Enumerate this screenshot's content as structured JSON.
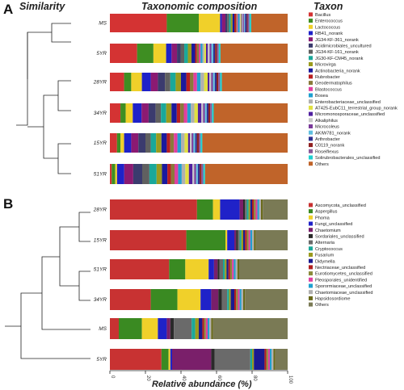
{
  "headers": {
    "similarity": "Similarity",
    "composition": "Taxonomic composition",
    "taxon": "Taxon"
  },
  "x_axis_label": "Relative abundance (%)",
  "x_ticks": [
    "0",
    "20",
    "40",
    "60",
    "80",
    "100"
  ],
  "chart_data": [
    {
      "panel": "A",
      "type": "bar",
      "orientation": "horizontal",
      "stacked": true,
      "xlim": [
        0,
        100
      ],
      "categories": [
        "MS",
        "5YR",
        "28YR",
        "34YR",
        "15YR",
        "51YR"
      ],
      "legend": [
        {
          "name": "Bacillus",
          "color": "#d43333"
        },
        {
          "name": "Enterococcus",
          "color": "#3e8e22"
        },
        {
          "name": "Lactococcus",
          "color": "#f0d02a"
        },
        {
          "name": "RB41_norank",
          "color": "#1f22c8"
        },
        {
          "name": "JG34-KF-361_norank",
          "color": "#8b1a72"
        },
        {
          "name": "Acidimicrobiales_uncultured",
          "color": "#3b3b6e"
        },
        {
          "name": "JG34-KF-161_norank",
          "color": "#606060"
        },
        {
          "name": "JG30-KF-CM45_norank",
          "color": "#1aa89a"
        },
        {
          "name": "Microvirga",
          "color": "#9b9b1e"
        },
        {
          "name": "Actinobacteria_norank",
          "color": "#1a1a9e"
        },
        {
          "name": "Rubrobacter",
          "color": "#b81f1f"
        },
        {
          "name": "Geodermatophilus",
          "color": "#8a7a3a"
        },
        {
          "name": "Blastococcus",
          "color": "#e040a0"
        },
        {
          "name": "Bosea",
          "color": "#1fa0d0"
        },
        {
          "name": "Enterobacteriaceae_unclassified",
          "color": "#b0b0b0"
        },
        {
          "name": "AT425-EubC11_terrestrial_group_norank",
          "color": "#e0e040"
        },
        {
          "name": "Micromonosporaceae_unclassified",
          "color": "#5020a0"
        },
        {
          "name": "Alkaliphilus",
          "color": "#c8c8c8"
        },
        {
          "name": "Microcoleus",
          "color": "#7a3a9a"
        },
        {
          "name": "AKIW781_norank",
          "color": "#60c0e0"
        },
        {
          "name": "Arthrobacter",
          "color": "#303090"
        },
        {
          "name": "C0119_norank",
          "color": "#902020"
        },
        {
          "name": "Roseiflexus",
          "color": "#8a5a9a"
        },
        {
          "name": "Solirubrobacterales_unclassified",
          "color": "#1fd0d0"
        },
        {
          "name": "Others",
          "color": "#c0642a"
        }
      ],
      "series_order": [
        "Bacillus",
        "Enterococcus",
        "Lactococcus",
        "RB41_norank",
        "JG34-KF-361_norank",
        "Acidimicrobiales_uncultured",
        "JG34-KF-161_norank",
        "JG30-KF-CM45_norank",
        "Microvirga",
        "Actinobacteria_norank",
        "Rubrobacter",
        "Geodermatophilus",
        "Blastococcus",
        "Bosea",
        "Enterobacteriaceae_unclassified",
        "AT425-EubC11_terrestrial_group_norank",
        "Micromonosporaceae_unclassified",
        "Alkaliphilus",
        "Microcoleus",
        "AKIW781_norank",
        "Arthrobacter",
        "C0119_norank",
        "Roseiflexus",
        "Solirubrobacterales_unclassified",
        "Others"
      ],
      "values": [
        [
          32,
          18,
          12,
          1,
          2,
          1,
          1,
          1,
          1,
          1,
          1,
          0.5,
          0.5,
          1,
          0.5,
          0.5,
          0.5,
          0.5,
          0.5,
          0.5,
          1,
          0.5,
          1,
          1,
          20.5
        ],
        [
          15,
          9,
          7,
          3,
          3,
          2,
          2,
          2,
          2,
          2,
          1,
          1,
          1,
          1,
          1,
          1,
          1,
          1,
          1,
          1,
          1,
          1,
          1,
          1,
          37
        ],
        [
          8,
          4,
          6,
          5,
          4,
          4,
          3,
          3,
          3,
          3,
          2,
          2,
          2,
          2,
          2,
          2,
          1,
          1,
          1,
          1,
          1,
          1,
          1,
          1,
          37
        ],
        [
          6,
          3,
          4,
          5,
          4,
          4,
          3,
          3,
          3,
          3,
          2,
          2,
          2,
          2,
          2,
          2,
          2,
          1,
          1,
          1,
          1,
          1,
          1,
          1,
          42
        ],
        [
          4,
          2,
          2,
          4,
          4,
          4,
          3,
          3,
          3,
          3,
          2,
          2,
          2,
          2,
          2,
          2,
          1,
          1,
          1,
          1,
          1,
          1,
          1,
          1,
          48
        ],
        [
          1,
          2,
          1,
          4,
          5,
          5,
          4,
          4,
          3,
          3,
          2,
          2,
          2,
          2,
          2,
          2,
          2,
          1,
          1,
          1,
          1,
          1,
          1,
          1,
          46
        ]
      ]
    },
    {
      "panel": "B",
      "type": "bar",
      "orientation": "horizontal",
      "stacked": true,
      "xlim": [
        0,
        100
      ],
      "categories": [
        "28YR",
        "15YR",
        "51YR",
        "34YR",
        "MS",
        "5YR"
      ],
      "legend": [
        {
          "name": "Ascomycota_unclassified",
          "color": "#c83232"
        },
        {
          "name": "Aspergillus",
          "color": "#3a8a22"
        },
        {
          "name": "Phoma",
          "color": "#f0d02a"
        },
        {
          "name": "Fungi_unclassified",
          "color": "#1f22c8"
        },
        {
          "name": "Chaetomium",
          "color": "#7a1f6a"
        },
        {
          "name": "Sordariales_unclassified",
          "color": "#2a2a2a"
        },
        {
          "name": "Alternaria",
          "color": "#6a6a6a"
        },
        {
          "name": "Cryptococcus",
          "color": "#1aa89a"
        },
        {
          "name": "Fusarium",
          "color": "#9a9a1e"
        },
        {
          "name": "Didymella",
          "color": "#1a1a90"
        },
        {
          "name": "Nectriaceae_unclassified",
          "color": "#b01f1f"
        },
        {
          "name": "Eurotiomycetes_unclassified",
          "color": "#8a8a3a"
        },
        {
          "name": "Pleosporales_unidentified",
          "color": "#e040a0"
        },
        {
          "name": "Sporormiaceae_unclassified",
          "color": "#1fa0d0"
        },
        {
          "name": "Chaetomiaceae_unclassified",
          "color": "#b0b0b0"
        },
        {
          "name": "Hapsidosordiome",
          "color": "#6a6a1a"
        },
        {
          "name": "Others",
          "color": "#7a7a55"
        }
      ],
      "series_order": [
        "Ascomycota_unclassified",
        "Aspergillus",
        "Phoma",
        "Fungi_unclassified",
        "Chaetomium",
        "Sordariales_unclassified",
        "Alternaria",
        "Cryptococcus",
        "Fusarium",
        "Didymella",
        "Nectriaceae_unclassified",
        "Eurotiomycetes_unclassified",
        "Pleosporales_unidentified",
        "Sporormiaceae_unclassified",
        "Chaetomiaceae_unclassified",
        "Hapsidosordiome",
        "Others"
      ],
      "values": [
        [
          49,
          9,
          4,
          11,
          2,
          1,
          1,
          1,
          1,
          1,
          1,
          1,
          1,
          1,
          1,
          1,
          14
        ],
        [
          43,
          22,
          1,
          4,
          1,
          1,
          1,
          1,
          1,
          1,
          1,
          1,
          1,
          1,
          1,
          1,
          18
        ],
        [
          33,
          9,
          13,
          3,
          2,
          1,
          2,
          1,
          1,
          1,
          1,
          1,
          1,
          1,
          1,
          1,
          27
        ],
        [
          23,
          15,
          13,
          6,
          4,
          2,
          3,
          1,
          1,
          2,
          1,
          1,
          1,
          1,
          1,
          1,
          24
        ],
        [
          5,
          13,
          9,
          5,
          2,
          2,
          10,
          2,
          2,
          2,
          1,
          1,
          1,
          1,
          1,
          1,
          42
        ],
        [
          29,
          4,
          1,
          1,
          22,
          2,
          20,
          1,
          1,
          6,
          1,
          1,
          1,
          1,
          1,
          1,
          7
        ]
      ]
    }
  ]
}
